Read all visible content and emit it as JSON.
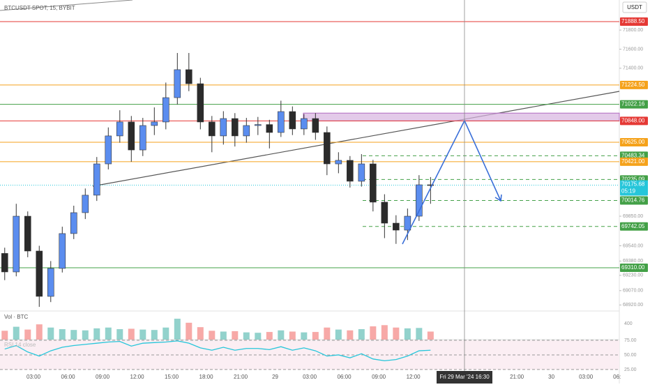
{
  "chart_data": {
    "type": "candlestick",
    "title": "BTCUSDT SPOT, 15, BYBIT",
    "currency": "USDT",
    "volume_title": "Vol · BTC",
    "rsi_title": "RSI 14 close",
    "crosshair_label": "Fri 29 Mar '24  16:30",
    "x": [
      0.5,
      1.5,
      2.5,
      3.5,
      4.5,
      5.5,
      6.5,
      7.5,
      8.5,
      9.5,
      10.5,
      11.5,
      12.5,
      13.5,
      14.5,
      15.5,
      16.5,
      17.5,
      18.5,
      19.5,
      20.5,
      21.5,
      22.5,
      23.5,
      24.5,
      25.5,
      26.5,
      27.5,
      28.5,
      29.5,
      30.5,
      31.5,
      32.5,
      33.5,
      34.5,
      35.5,
      36.5,
      37.5
    ],
    "open": [
      69460,
      69266,
      69850,
      69485,
      69010,
      69303,
      69668,
      69887,
      70070,
      70398,
      70691,
      70837,
      70544,
      70800,
      70837,
      71092,
      71385,
      71238,
      70837,
      70691,
      70873,
      70691,
      70800,
      70810,
      70727,
      70946,
      70764,
      70873,
      70727,
      70398,
      70435,
      70216,
      70398,
      69997,
      69777,
      69704,
      69850,
      70179
    ],
    "high": [
      69520,
      69980,
      69900,
      69540,
      69380,
      69740,
      69960,
      70140,
      70470,
      70780,
      70960,
      70900,
      70880,
      70990,
      71250,
      71560,
      71560,
      71300,
      70900,
      70950,
      70930,
      70880,
      70890,
      70860,
      71060,
      71000,
      70920,
      70930,
      70790,
      70520,
      70480,
      70500,
      70440,
      70080,
      69860,
      69930,
      70280,
      70260
    ],
    "low": [
      69180,
      69220,
      69420,
      68900,
      68950,
      69260,
      69610,
      69820,
      70010,
      70340,
      70620,
      70420,
      70480,
      70700,
      70760,
      71020,
      71160,
      70760,
      70520,
      70600,
      70580,
      70620,
      70700,
      70560,
      70680,
      70700,
      70700,
      70650,
      70280,
      70300,
      70150,
      70160,
      69900,
      69620,
      69560,
      69600,
      69800,
      69980
    ],
    "close": [
      69266,
      69850,
      69485,
      69010,
      69303,
      69668,
      69887,
      70070,
      70398,
      70691,
      70837,
      70544,
      70800,
      70837,
      71092,
      71385,
      71238,
      70837,
      70691,
      70873,
      70691,
      70800,
      70810,
      70727,
      70946,
      70764,
      70873,
      70727,
      70398,
      70435,
      70216,
      70398,
      69997,
      69777,
      69704,
      69850,
      70179,
      70175.68
    ],
    "volume": [
      220,
      320,
      250,
      380,
      300,
      260,
      240,
      230,
      280,
      300,
      260,
      270,
      250,
      240,
      300,
      520,
      420,
      310,
      220,
      200,
      210,
      180,
      170,
      190,
      230,
      200,
      180,
      190,
      300,
      250,
      230,
      260,
      330,
      360,
      300,
      280,
      290,
      200
    ],
    "rsi": [
      60,
      66,
      55,
      48,
      57,
      63,
      66,
      68,
      70,
      72,
      73,
      65,
      70,
      71,
      72,
      74,
      70,
      62,
      58,
      63,
      58,
      61,
      61,
      59,
      64,
      58,
      62,
      57,
      48,
      50,
      45,
      52,
      43,
      40,
      42,
      48,
      57,
      58
    ],
    "xlim": [
      0.09,
      53.9
    ],
    "xticks": [
      {
        "value": 3,
        "label": "03:00"
      },
      {
        "value": 6,
        "label": "06:00"
      },
      {
        "value": 9,
        "label": "09:00"
      },
      {
        "value": 12,
        "label": "12:00"
      },
      {
        "value": 15,
        "label": "15:00"
      },
      {
        "value": 18,
        "label": "18:00"
      },
      {
        "value": 21,
        "label": "21:00"
      },
      {
        "value": 24,
        "label": "29"
      },
      {
        "value": 27,
        "label": "03:00"
      },
      {
        "value": 30,
        "label": "06:00"
      },
      {
        "value": 33,
        "label": "09:00"
      },
      {
        "value": 36,
        "label": "12:00"
      },
      {
        "value": 45,
        "label": "21:00"
      },
      {
        "value": 48,
        "label": "30"
      },
      {
        "value": 51,
        "label": "03:00"
      },
      {
        "value": 53.7,
        "label": "06:"
      }
    ],
    "ylim": [
      68864,
      72115
    ],
    "yticks": [
      {
        "value": 71800,
        "label": "71800.00"
      },
      {
        "value": 71600,
        "label": "71600.00"
      },
      {
        "value": 71400,
        "label": "71400.00"
      },
      {
        "value": 69850,
        "label": "69850.00"
      },
      {
        "value": 69540,
        "label": "69540.00"
      },
      {
        "value": 69380,
        "label": "69380.00"
      },
      {
        "value": 69230,
        "label": "69230.00"
      },
      {
        "value": 69070,
        "label": "69070.00"
      },
      {
        "value": 68920,
        "label": "68920.00"
      }
    ],
    "volume_lim": [
      0,
      678
    ],
    "volume_ticks": [
      400
    ],
    "rsi_lim": [
      13,
      84.5
    ],
    "rsi_ticks": [
      {
        "value": 75,
        "label": "75.00"
      },
      {
        "value": 50,
        "label": "50.00"
      },
      {
        "value": 25,
        "label": "25.00"
      }
    ],
    "levels": [
      {
        "value": 71888.5,
        "label": "71888.50",
        "color": "#e53935",
        "style": "solid"
      },
      {
        "value": 71224.5,
        "label": "71224.50",
        "color": "#f5a21b",
        "style": "solid"
      },
      {
        "value": 71022.16,
        "label": "71022.16",
        "color": "#43a047",
        "style": "solid"
      },
      {
        "value": 70848,
        "label": "70848.00",
        "color": "#e53935",
        "style": "solid"
      },
      {
        "value": 70625,
        "label": "70625.00",
        "color": "#f5a21b",
        "style": "solid"
      },
      {
        "value": 70483.34,
        "label": "70483.34",
        "color": "#43a047",
        "style": "dashed"
      },
      {
        "value": 70421,
        "label": "70421.00",
        "color": "#f5a21b",
        "style": "solid"
      },
      {
        "value": 70235.09,
        "label": "70235.09",
        "color": "#43a047",
        "style": "dashed"
      },
      {
        "value": 70014.76,
        "label": "70014.76",
        "color": "#43a047",
        "style": "dashed"
      },
      {
        "value": 69742.05,
        "label": "69742.05",
        "color": "#43a047",
        "style": "dashed"
      },
      {
        "value": 69310,
        "label": "69310.00",
        "color": "#43a047",
        "style": "solid"
      }
    ],
    "zone": [
      70848,
      70930
    ],
    "last_price": {
      "value": 70175.68,
      "label": "70175.68",
      "countdown": "05:19",
      "color": "#26c6da"
    },
    "up_color": "#5b8def",
    "down_color": "#2b2b2b"
  }
}
